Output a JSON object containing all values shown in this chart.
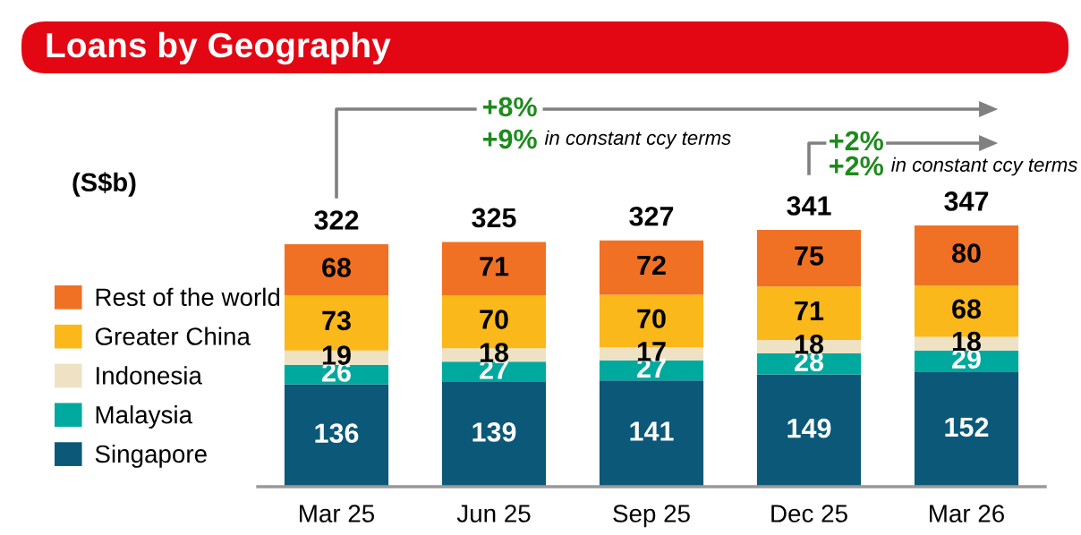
{
  "chart_data": {
    "type": "bar",
    "title": "Loans by Geography",
    "ylabel": "(S$b)",
    "stacked": true,
    "data_labels": true,
    "legend": "left",
    "categories": [
      "Mar 25",
      "Jun 25",
      "Sep 25",
      "Dec 25",
      "Mar 26"
    ],
    "series": [
      {
        "name": "Singapore",
        "color": "#0b5878",
        "values": [
          136,
          139,
          141,
          149,
          152
        ]
      },
      {
        "name": "Malaysia",
        "color": "#00a99d",
        "values": [
          26,
          27,
          27,
          28,
          29
        ]
      },
      {
        "name": "Indonesia",
        "color": "#efe2c4",
        "values": [
          19,
          18,
          17,
          18,
          18
        ]
      },
      {
        "name": "Greater China",
        "color": "#fbb81b",
        "values": [
          73,
          70,
          70,
          71,
          68
        ]
      },
      {
        "name": "Rest of the world",
        "color": "#f07124",
        "values": [
          68,
          71,
          72,
          75,
          80
        ]
      }
    ],
    "totals": [
      "322",
      "325",
      "327",
      "341",
      "347"
    ],
    "annotations": [
      "+8%",
      "+9% in constant ccy terms",
      "+2%",
      "+2% in constant ccy terms"
    ]
  }
}
